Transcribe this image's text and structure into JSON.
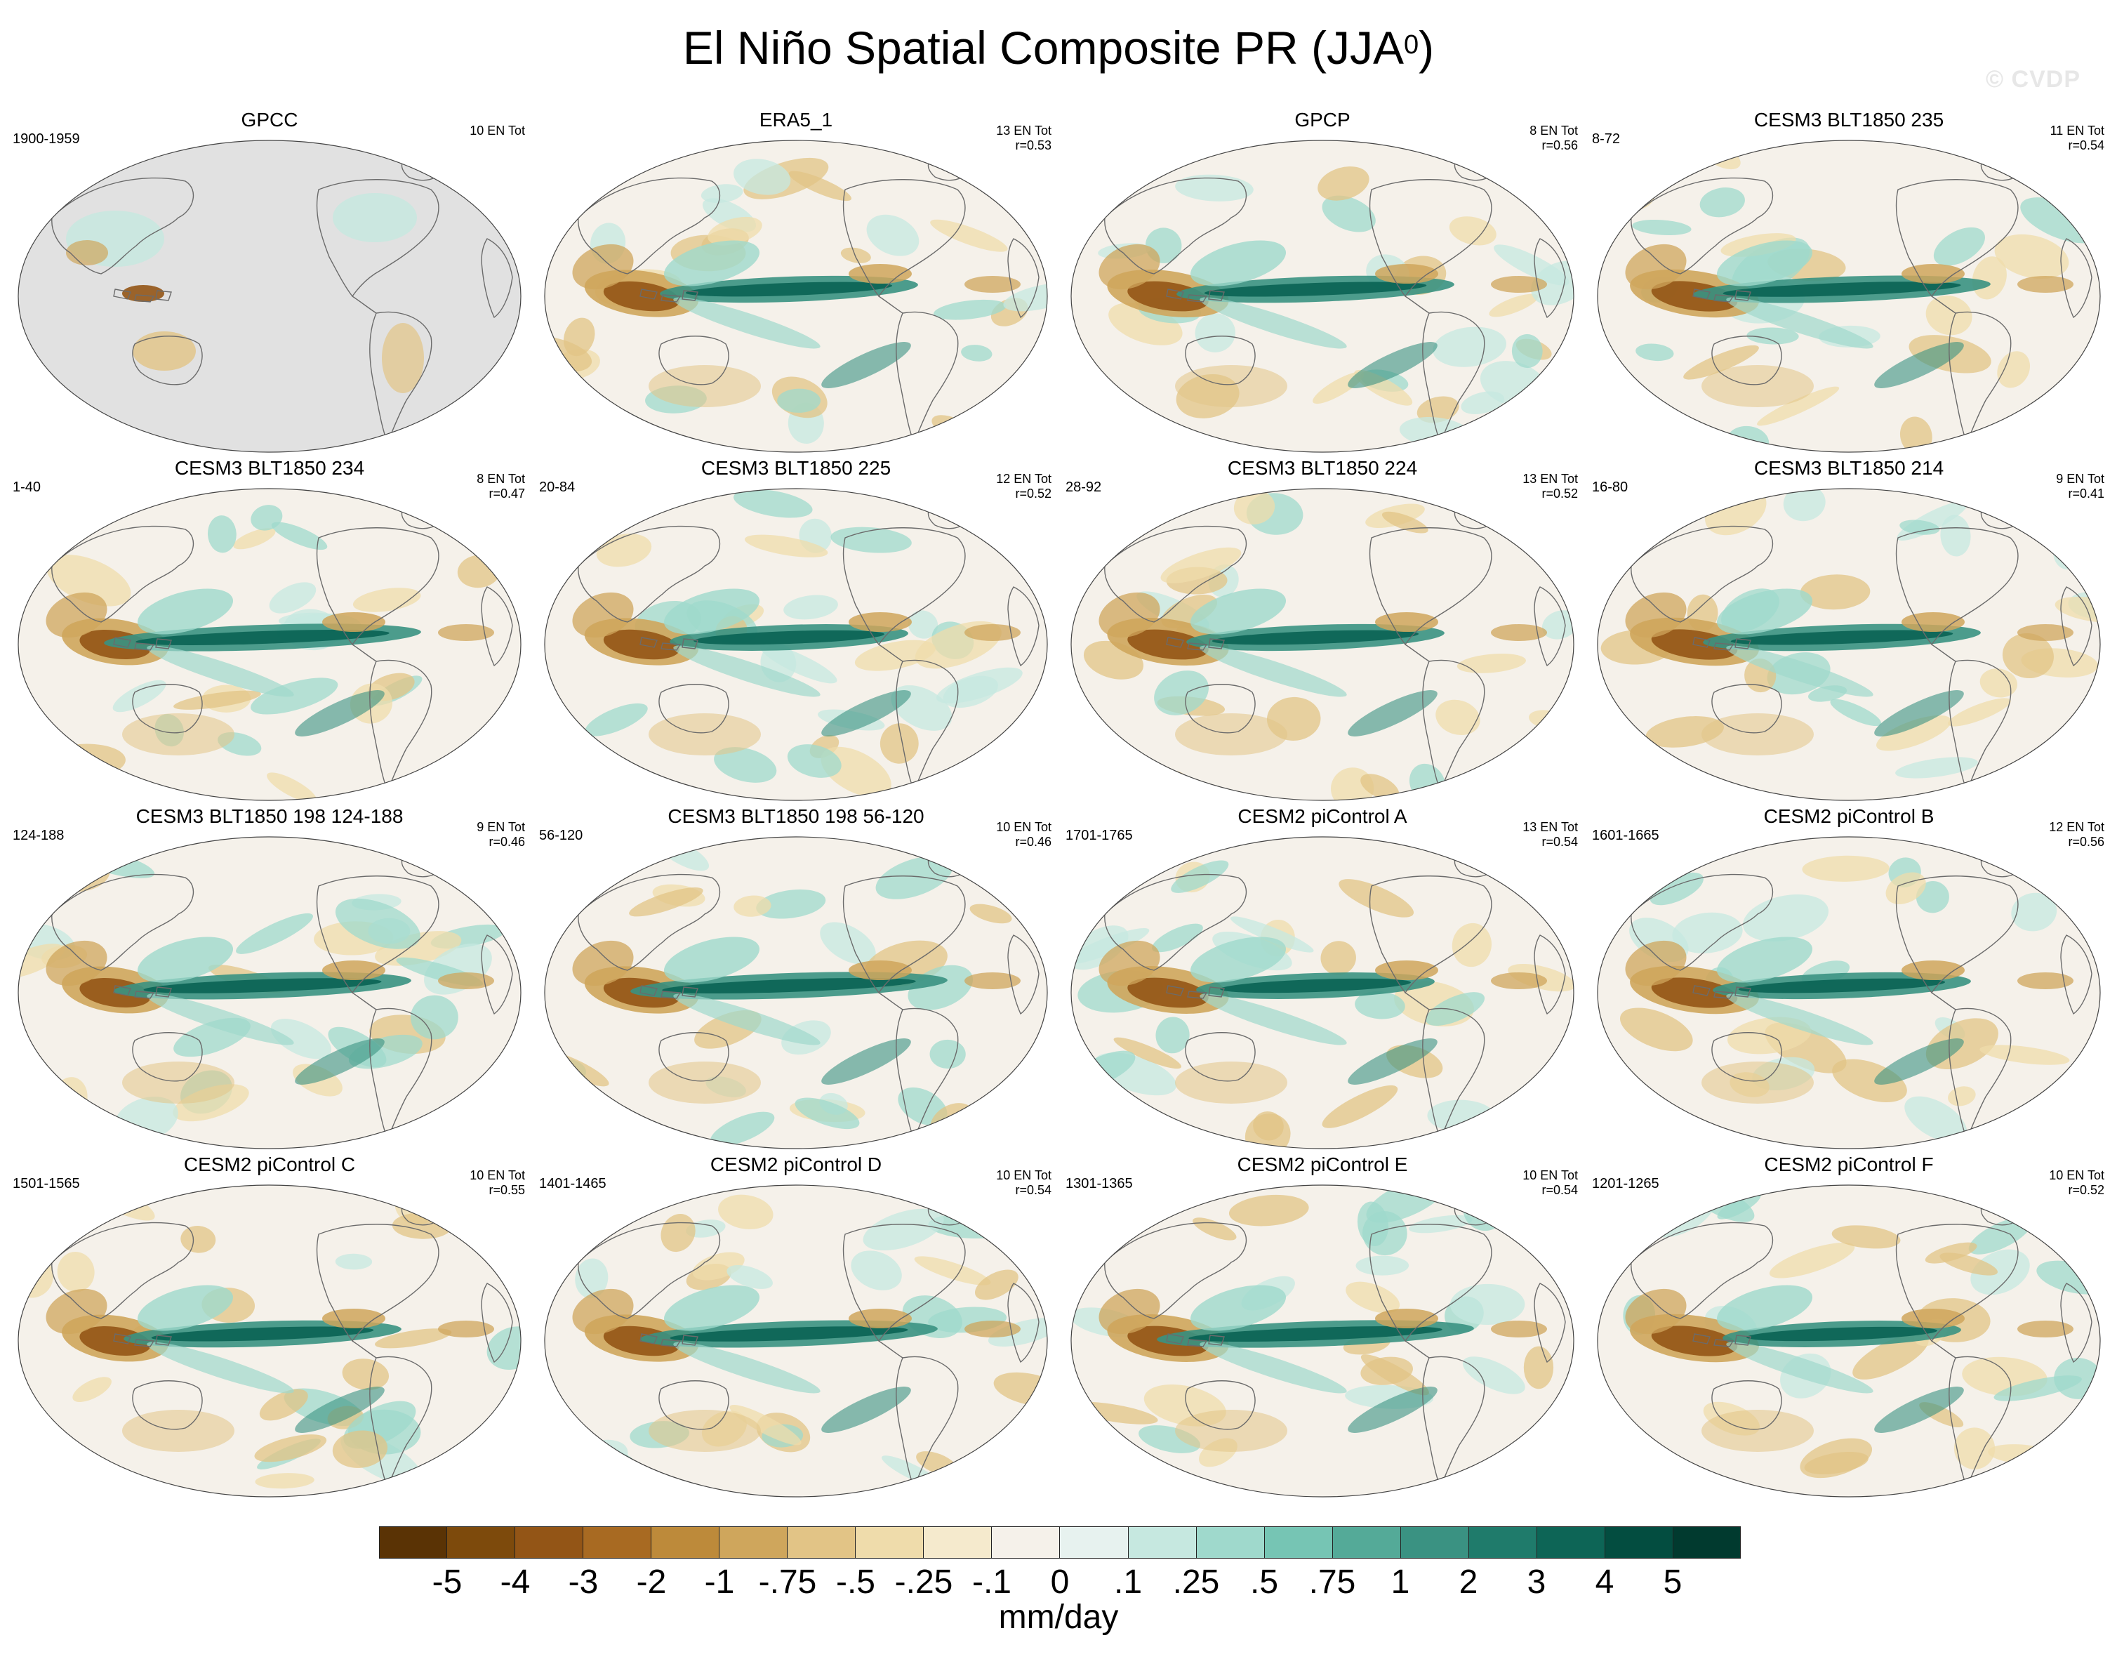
{
  "title_main": "El Niño Spatial Composite PR (JJA",
  "title_sup": "0",
  "title_end": ")",
  "watermark": "© CVDP",
  "panels": [
    {
      "title": "GPCC",
      "left_label": "1900-1959",
      "right_line1": "10 EN Tot",
      "right_line2": "",
      "variant": 0,
      "masked": true
    },
    {
      "title": "ERA5_1",
      "left_label": "",
      "right_line1": "13 EN Tot",
      "right_line2": "r=0.53",
      "variant": 1,
      "masked": false
    },
    {
      "title": "GPCP",
      "left_label": "",
      "right_line1": "8 EN Tot",
      "right_line2": "r=0.56",
      "variant": 2,
      "masked": false
    },
    {
      "title": "CESM3 BLT1850 235",
      "left_label": "8-72",
      "right_line1": "11 EN Tot",
      "right_line2": "r=0.54",
      "variant": 3,
      "masked": false
    },
    {
      "title": "CESM3 BLT1850 234",
      "left_label": "1-40",
      "right_line1": "8 EN Tot",
      "right_line2": "r=0.47",
      "variant": 4,
      "masked": false
    },
    {
      "title": "CESM3 BLT1850 225",
      "left_label": "20-84",
      "right_line1": "12 EN Tot",
      "right_line2": "r=0.52",
      "variant": 5,
      "masked": false
    },
    {
      "title": "CESM3 BLT1850 224",
      "left_label": "28-92",
      "right_line1": "13 EN Tot",
      "right_line2": "r=0.52",
      "variant": 6,
      "masked": false
    },
    {
      "title": "CESM3 BLT1850 214",
      "left_label": "16-80",
      "right_line1": "9 EN Tot",
      "right_line2": "r=0.41",
      "variant": 7,
      "masked": false
    },
    {
      "title": "CESM3 BLT1850 198 124-188",
      "left_label": "124-188",
      "right_line1": "9 EN Tot",
      "right_line2": "r=0.46",
      "variant": 8,
      "masked": false
    },
    {
      "title": "CESM3 BLT1850 198 56-120",
      "left_label": "56-120",
      "right_line1": "10 EN Tot",
      "right_line2": "r=0.46",
      "variant": 9,
      "masked": false
    },
    {
      "title": "CESM2 piControl A",
      "left_label": "1701-1765",
      "right_line1": "13 EN Tot",
      "right_line2": "r=0.54",
      "variant": 10,
      "masked": false
    },
    {
      "title": "CESM2 piControl B",
      "left_label": "1601-1665",
      "right_line1": "12 EN Tot",
      "right_line2": "r=0.56",
      "variant": 11,
      "masked": false
    },
    {
      "title": "CESM2 piControl C",
      "left_label": "1501-1565",
      "right_line1": "10 EN Tot",
      "right_line2": "r=0.55",
      "variant": 12,
      "masked": false
    },
    {
      "title": "CESM2 piControl D",
      "left_label": "1401-1465",
      "right_line1": "10 EN Tot",
      "right_line2": "r=0.54",
      "variant": 13,
      "masked": false
    },
    {
      "title": "CESM2 piControl E",
      "left_label": "1301-1365",
      "right_line1": "10 EN Tot",
      "right_line2": "r=0.54",
      "variant": 14,
      "masked": false
    },
    {
      "title": "CESM2 piControl F",
      "left_label": "1201-1265",
      "right_line1": "10 EN Tot",
      "right_line2": "r=0.52",
      "variant": 15,
      "masked": false
    }
  ],
  "colorbar": {
    "colors": [
      "#5a3305",
      "#7d4a0c",
      "#935516",
      "#a86a22",
      "#bd8a3a",
      "#cfa65c",
      "#e2c486",
      "#efdcab",
      "#f5eacd",
      "#f5f1ea",
      "#e7f2ef",
      "#c6e8e0",
      "#9fd9cc",
      "#76c5b4",
      "#54aa98",
      "#3a9282",
      "#1f7b6b",
      "#0d6556",
      "#034d40",
      "#013a2f"
    ],
    "tick_labels": [
      "-5",
      "-4",
      "-3",
      "-2",
      "-1",
      "-.75",
      "-.5",
      "-.25",
      "-.1",
      "0",
      ".1",
      ".25",
      ".5",
      ".75",
      "1",
      "2",
      "3",
      "4",
      "5"
    ],
    "units": "mm/day"
  }
}
